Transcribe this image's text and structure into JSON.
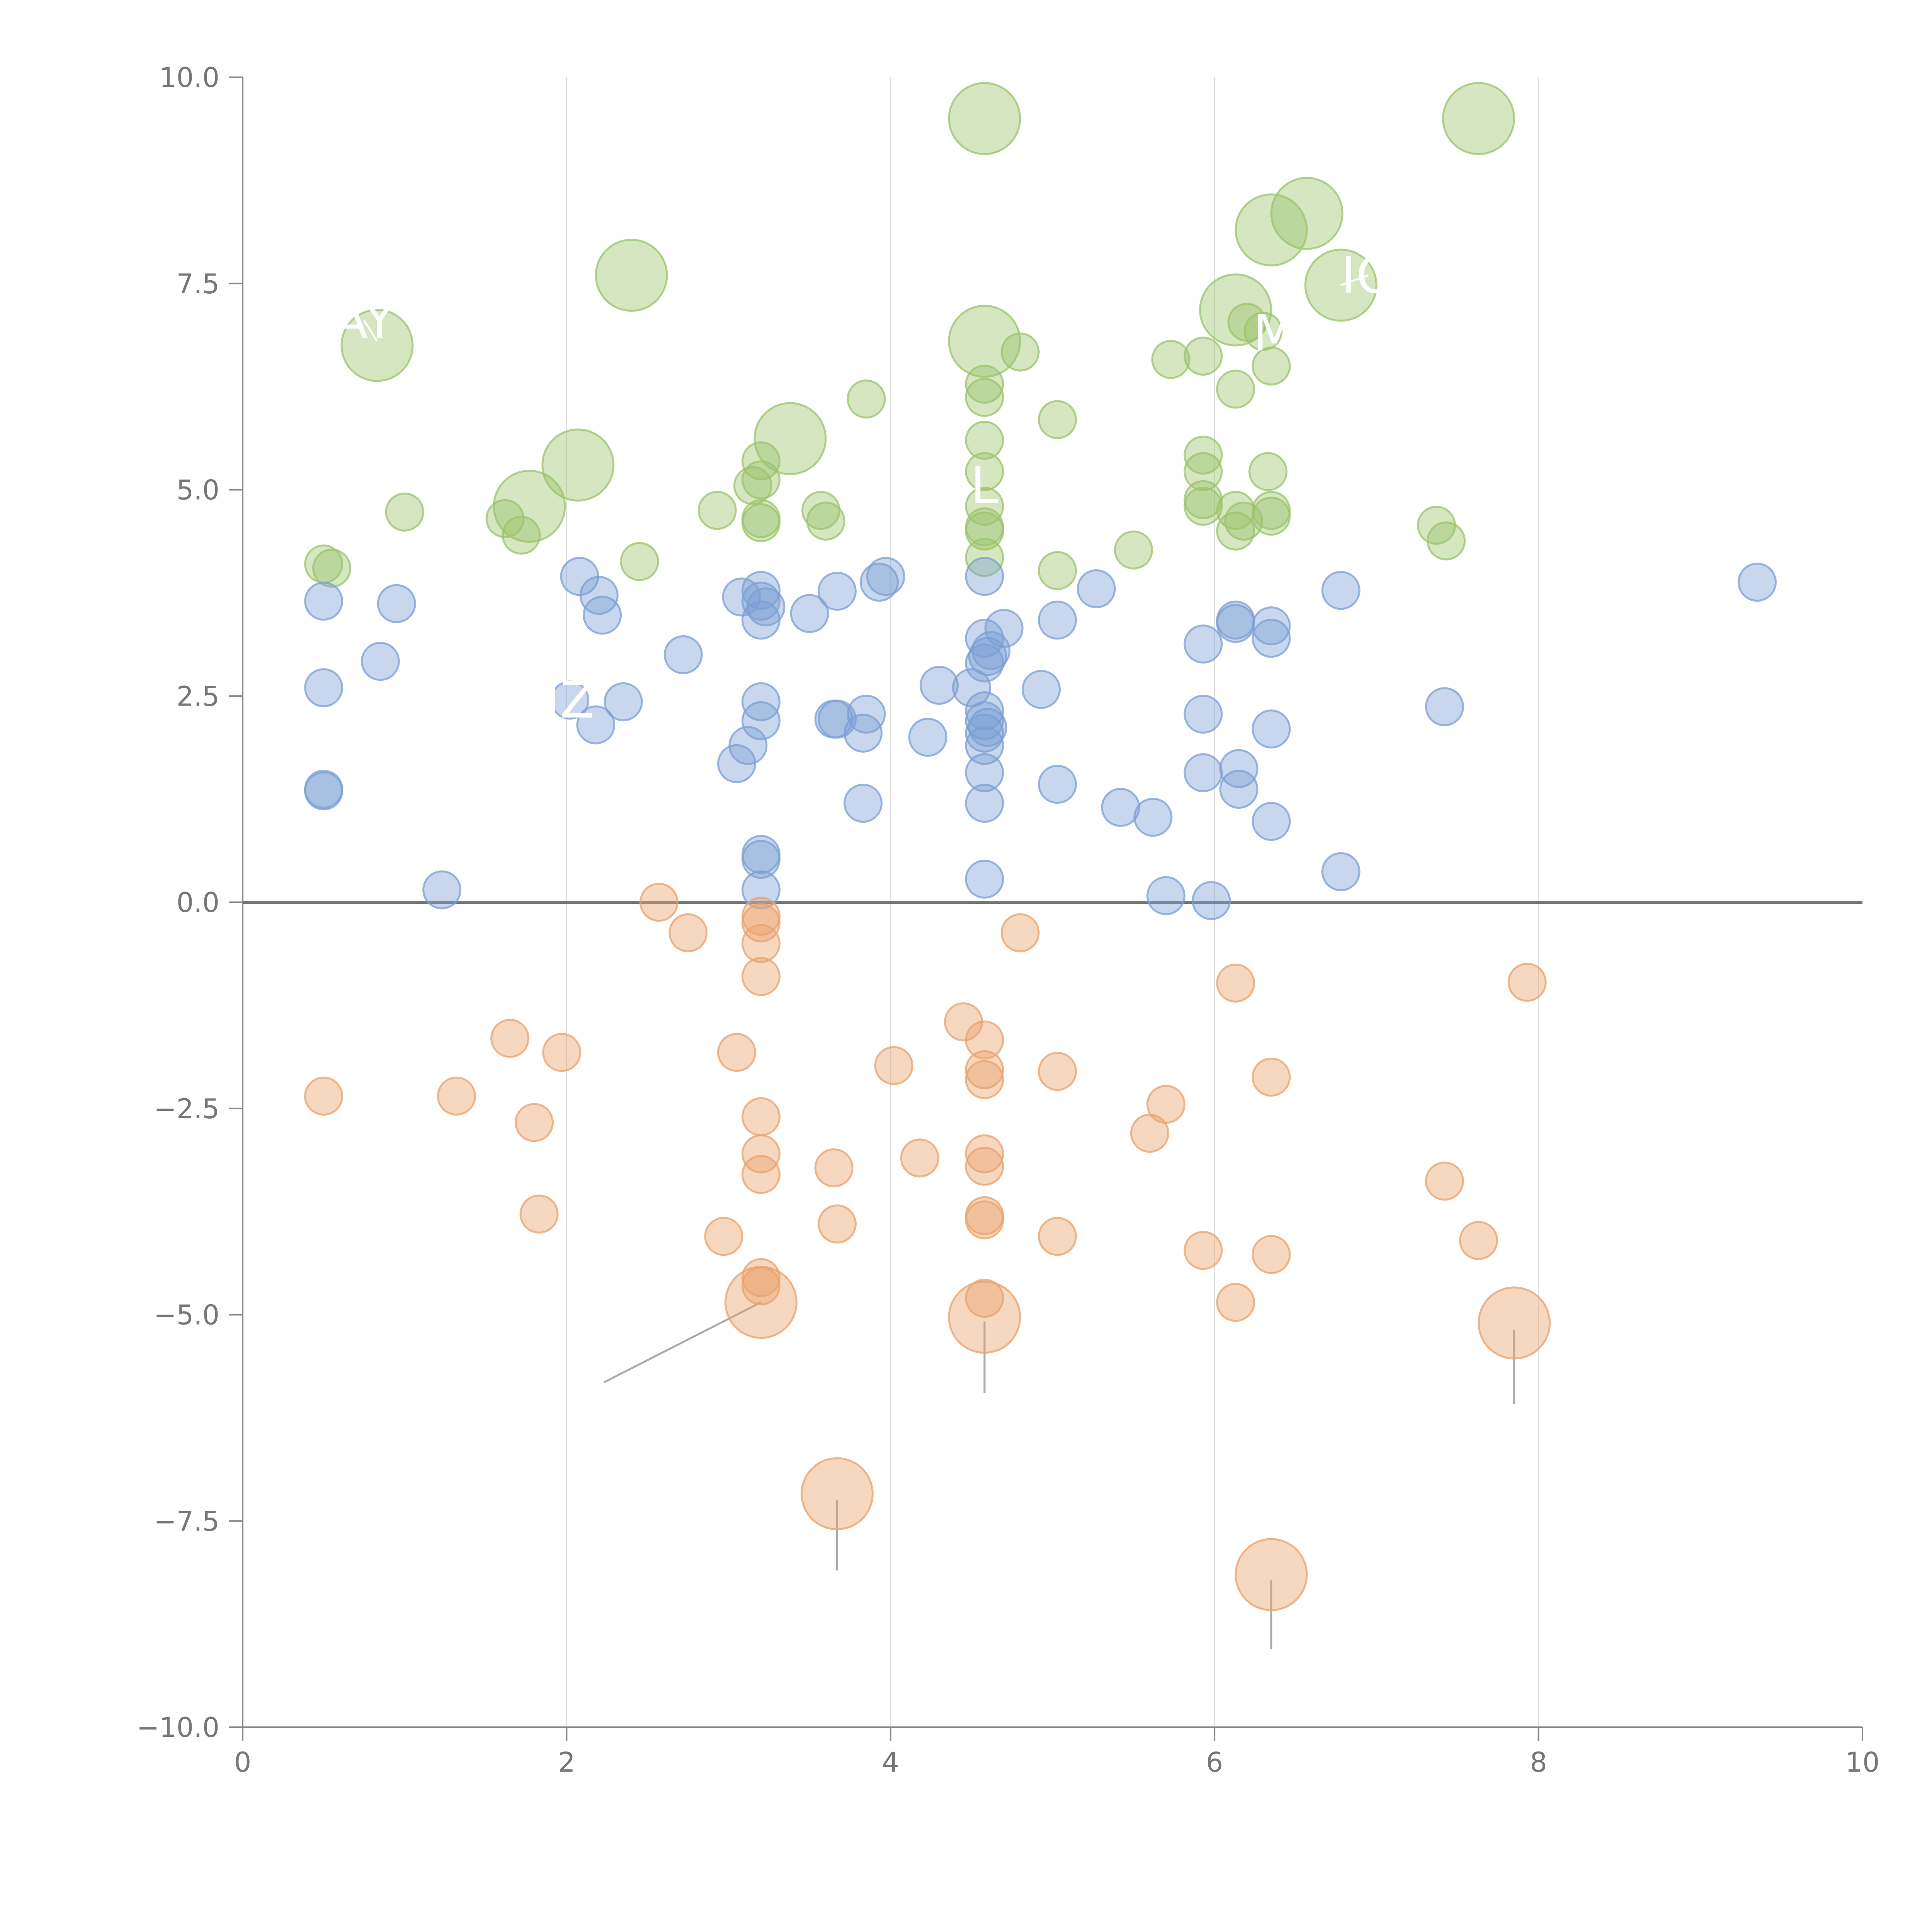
{
  "chart_data": {
    "type": "scatter",
    "title": "",
    "xlabel": "",
    "ylabel": "",
    "xlim": [
      0,
      10
    ],
    "ylim": [
      -10,
      10
    ],
    "x_ticks": [
      0,
      2,
      4,
      6,
      8,
      10
    ],
    "x_tick_labels": [
      "0",
      "2",
      "4",
      "6",
      "8",
      "10"
    ],
    "y_ticks": [
      10,
      7.5,
      5,
      2.5,
      0,
      -2.5,
      -5,
      -7.5,
      -10
    ],
    "y_tick_labels": [
      "10.0",
      "7.5",
      "5.0",
      "2.5",
      "0.0",
      "−2.5",
      "−5.0",
      "−7.5",
      "−10.0"
    ],
    "grid": "vertical",
    "reference_line_y": 0,
    "series": [
      {
        "name": "green",
        "color": "#9bc36b",
        "points": [
          [
            4.58,
            9.5,
            2
          ],
          [
            7.63,
            9.5,
            2
          ],
          [
            6.57,
            8.35,
            2
          ],
          [
            6.35,
            8.15,
            2
          ],
          [
            2.4,
            7.6,
            2
          ],
          [
            6.78,
            7.48,
            2
          ],
          [
            6.13,
            7.18,
            2
          ],
          [
            0.83,
            6.75,
            2
          ],
          [
            4.58,
            6.8,
            2
          ],
          [
            3.38,
            5.62,
            2
          ],
          [
            2.07,
            5.3,
            2
          ],
          [
            1.77,
            4.8,
            2
          ],
          [
            6.2,
            7.03,
            1
          ],
          [
            6.3,
            6.92,
            1
          ],
          [
            4.8,
            6.67,
            1
          ],
          [
            5.73,
            6.58,
            1
          ],
          [
            5.93,
            6.62,
            1
          ],
          [
            6.35,
            6.5,
            1
          ],
          [
            4.58,
            6.28,
            1
          ],
          [
            4.58,
            6.12,
            1
          ],
          [
            6.13,
            6.22,
            1
          ],
          [
            3.85,
            6.1,
            1
          ],
          [
            5.03,
            5.85,
            1
          ],
          [
            4.58,
            5.6,
            1
          ],
          [
            3.2,
            5.35,
            1
          ],
          [
            5.93,
            5.42,
            1
          ],
          [
            4.58,
            5.22,
            1
          ],
          [
            5.93,
            5.22,
            1
          ],
          [
            6.33,
            5.22,
            1
          ],
          [
            3.15,
            5.05,
            1
          ],
          [
            3.2,
            5.12,
            1
          ],
          [
            5.93,
            4.88,
            1
          ],
          [
            5.93,
            4.8,
            1
          ],
          [
            4.58,
            4.8,
            1
          ],
          [
            6.13,
            4.75,
            1
          ],
          [
            6.35,
            4.75,
            1
          ],
          [
            6.35,
            4.68,
            1
          ],
          [
            6.18,
            4.62,
            1
          ],
          [
            6.13,
            4.5,
            1
          ],
          [
            1.0,
            4.73,
            1
          ],
          [
            2.93,
            4.75,
            1
          ],
          [
            3.57,
            4.75,
            1
          ],
          [
            3.6,
            4.62,
            1
          ],
          [
            3.2,
            4.65,
            1
          ],
          [
            3.2,
            4.6,
            1
          ],
          [
            1.62,
            4.65,
            1
          ],
          [
            1.72,
            4.45,
            1
          ],
          [
            4.58,
            4.55,
            1
          ],
          [
            4.58,
            4.5,
            1
          ],
          [
            4.58,
            4.18,
            1
          ],
          [
            7.37,
            4.57,
            1
          ],
          [
            7.43,
            4.38,
            1
          ],
          [
            5.5,
            4.27,
            1
          ],
          [
            2.45,
            4.13,
            1
          ],
          [
            5.03,
            4.02,
            1
          ],
          [
            0.5,
            4.1,
            1
          ],
          [
            0.55,
            4.05,
            1
          ]
        ]
      },
      {
        "name": "blue",
        "color": "#7b9fd4",
        "points": [
          [
            4.58,
            3.95,
            1
          ],
          [
            3.97,
            3.95,
            1
          ],
          [
            3.93,
            3.88,
            1
          ],
          [
            2.08,
            3.95,
            1
          ],
          [
            2.2,
            3.72,
            1
          ],
          [
            2.22,
            3.48,
            1
          ],
          [
            3.2,
            3.78,
            1
          ],
          [
            3.08,
            3.7,
            1
          ],
          [
            3.2,
            3.65,
            1
          ],
          [
            3.23,
            3.58,
            1
          ],
          [
            3.2,
            3.42,
            1
          ],
          [
            3.67,
            3.77,
            1
          ],
          [
            3.5,
            3.5,
            1
          ],
          [
            0.5,
            3.65,
            1
          ],
          [
            0.95,
            3.62,
            1
          ],
          [
            9.35,
            3.88,
            1
          ],
          [
            6.78,
            3.78,
            1
          ],
          [
            5.27,
            3.8,
            1
          ],
          [
            5.03,
            3.42,
            1
          ],
          [
            6.13,
            3.42,
            1
          ],
          [
            6.13,
            3.38,
            1
          ],
          [
            6.35,
            3.35,
            1
          ],
          [
            6.35,
            3.2,
            1
          ],
          [
            5.93,
            3.13,
            1
          ],
          [
            4.7,
            3.32,
            1
          ],
          [
            4.58,
            3.2,
            1
          ],
          [
            4.62,
            3.05,
            1
          ],
          [
            4.6,
            2.98,
            1
          ],
          [
            4.58,
            2.9,
            1
          ],
          [
            2.72,
            3.0,
            1
          ],
          [
            0.85,
            2.92,
            1
          ],
          [
            4.93,
            2.58,
            1
          ],
          [
            4.3,
            2.63,
            1
          ],
          [
            4.5,
            2.6,
            1
          ],
          [
            0.5,
            2.6,
            1
          ],
          [
            2.02,
            2.45,
            1
          ],
          [
            2.35,
            2.43,
            1
          ],
          [
            3.2,
            2.43,
            1
          ],
          [
            2.18,
            2.15,
            1
          ],
          [
            3.2,
            2.2,
            1
          ],
          [
            3.65,
            2.22,
            1
          ],
          [
            3.67,
            2.22,
            1
          ],
          [
            3.85,
            2.28,
            1
          ],
          [
            3.83,
            2.05,
            1
          ],
          [
            4.23,
            2.0,
            1
          ],
          [
            4.58,
            2.32,
            1
          ],
          [
            4.58,
            2.2,
            1
          ],
          [
            4.6,
            2.12,
            1
          ],
          [
            4.58,
            2.05,
            1
          ],
          [
            4.58,
            1.9,
            1
          ],
          [
            5.93,
            2.28,
            1
          ],
          [
            6.35,
            2.1,
            1
          ],
          [
            7.42,
            2.37,
            1
          ],
          [
            3.12,
            1.9,
            1
          ],
          [
            3.05,
            1.68,
            1
          ],
          [
            4.58,
            1.57,
            1
          ],
          [
            5.93,
            1.57,
            1
          ],
          [
            6.15,
            1.62,
            1
          ],
          [
            6.15,
            1.37,
            1
          ],
          [
            5.03,
            1.43,
            1
          ],
          [
            0.5,
            1.37,
            1
          ],
          [
            0.5,
            1.35,
            1
          ],
          [
            3.83,
            1.2,
            1
          ],
          [
            4.58,
            1.2,
            1
          ],
          [
            5.42,
            1.15,
            1
          ],
          [
            5.62,
            1.03,
            1
          ],
          [
            6.35,
            0.98,
            1
          ],
          [
            3.2,
            0.58,
            1
          ],
          [
            3.2,
            0.52,
            1
          ],
          [
            6.78,
            0.37,
            1
          ],
          [
            4.58,
            0.28,
            1
          ],
          [
            1.23,
            0.15,
            1
          ],
          [
            3.2,
            0.15,
            1
          ],
          [
            5.7,
            0.08,
            1
          ],
          [
            5.98,
            0.02,
            1
          ]
        ]
      },
      {
        "name": "orange",
        "color": "#eaa26b",
        "points": [
          [
            2.57,
            0.0,
            1
          ],
          [
            2.75,
            -0.37,
            1
          ],
          [
            3.2,
            -0.17,
            1
          ],
          [
            3.2,
            -0.25,
            1
          ],
          [
            3.2,
            -0.5,
            1
          ],
          [
            3.2,
            -0.9,
            1
          ],
          [
            4.8,
            -0.37,
            1
          ],
          [
            6.13,
            -0.98,
            1
          ],
          [
            7.93,
            -0.97,
            1
          ],
          [
            4.45,
            -1.45,
            1
          ],
          [
            4.58,
            -1.67,
            1
          ],
          [
            1.65,
            -1.65,
            1
          ],
          [
            1.97,
            -1.82,
            1
          ],
          [
            3.05,
            -1.82,
            1
          ],
          [
            4.02,
            -1.98,
            1
          ],
          [
            4.58,
            -2.03,
            1
          ],
          [
            4.58,
            -2.15,
            1
          ],
          [
            5.03,
            -2.05,
            1
          ],
          [
            6.35,
            -2.12,
            1
          ],
          [
            0.5,
            -2.35,
            1
          ],
          [
            1.32,
            -2.35,
            1
          ],
          [
            1.8,
            -2.67,
            1
          ],
          [
            3.2,
            -2.6,
            1
          ],
          [
            5.7,
            -2.45,
            1
          ],
          [
            5.6,
            -2.8,
            1
          ],
          [
            3.2,
            -3.05,
            1
          ],
          [
            4.18,
            -3.1,
            1
          ],
          [
            4.58,
            -3.05,
            1
          ],
          [
            4.58,
            -3.2,
            1
          ],
          [
            3.65,
            -3.22,
            1
          ],
          [
            3.2,
            -3.3,
            1
          ],
          [
            7.42,
            -3.38,
            1
          ],
          [
            1.83,
            -3.78,
            1
          ],
          [
            4.58,
            -3.8,
            1
          ],
          [
            4.58,
            -3.85,
            1
          ],
          [
            3.67,
            -3.9,
            1
          ],
          [
            2.97,
            -4.05,
            1
          ],
          [
            5.03,
            -4.05,
            1
          ],
          [
            7.63,
            -4.1,
            1
          ],
          [
            5.93,
            -4.22,
            1
          ],
          [
            6.35,
            -4.27,
            1
          ],
          [
            3.2,
            -4.55,
            1
          ],
          [
            3.2,
            -4.65,
            1
          ],
          [
            4.58,
            -4.8,
            1
          ],
          [
            6.13,
            -4.85,
            1
          ],
          [
            3.2,
            -4.85,
            2
          ],
          [
            4.58,
            -5.03,
            2
          ],
          [
            7.85,
            -5.1,
            2
          ],
          [
            3.67,
            -7.17,
            2
          ],
          [
            6.35,
            -8.15,
            2
          ]
        ]
      }
    ],
    "point_labels": [
      {
        "text": "AY",
        "x": 0.75,
        "y": 7.05,
        "to_x": 0.83,
        "to_y": 6.8
      },
      {
        "text": "L",
        "x": 4.58,
        "y": 5.05,
        "to_x": 4.58,
        "to_y": 5.05
      },
      {
        "text": "M",
        "x": 6.37,
        "y": 6.9,
        "to_x": 6.37,
        "to_y": 6.9
      },
      {
        "text": "IO",
        "x": 6.95,
        "y": 7.6,
        "to_x": 6.78,
        "to_y": 7.48
      },
      {
        "text": "IZ",
        "x": 2.02,
        "y": 2.45,
        "to_x": 2.02,
        "to_y": 2.45
      }
    ],
    "leader_lines": [
      {
        "x1": 2.23,
        "y1": -5.82,
        "x2": 3.2,
        "y2": -4.85
      },
      {
        "x1": 4.58,
        "y1": -5.95,
        "x2": 4.58,
        "y2": -5.08
      },
      {
        "x1": 7.85,
        "y1": -6.08,
        "x2": 7.85,
        "y2": -5.18
      },
      {
        "x1": 3.67,
        "y1": -8.1,
        "x2": 3.67,
        "y2": -7.25
      },
      {
        "x1": 6.35,
        "y1": -9.05,
        "x2": 6.35,
        "y2": -8.22
      }
    ]
  }
}
